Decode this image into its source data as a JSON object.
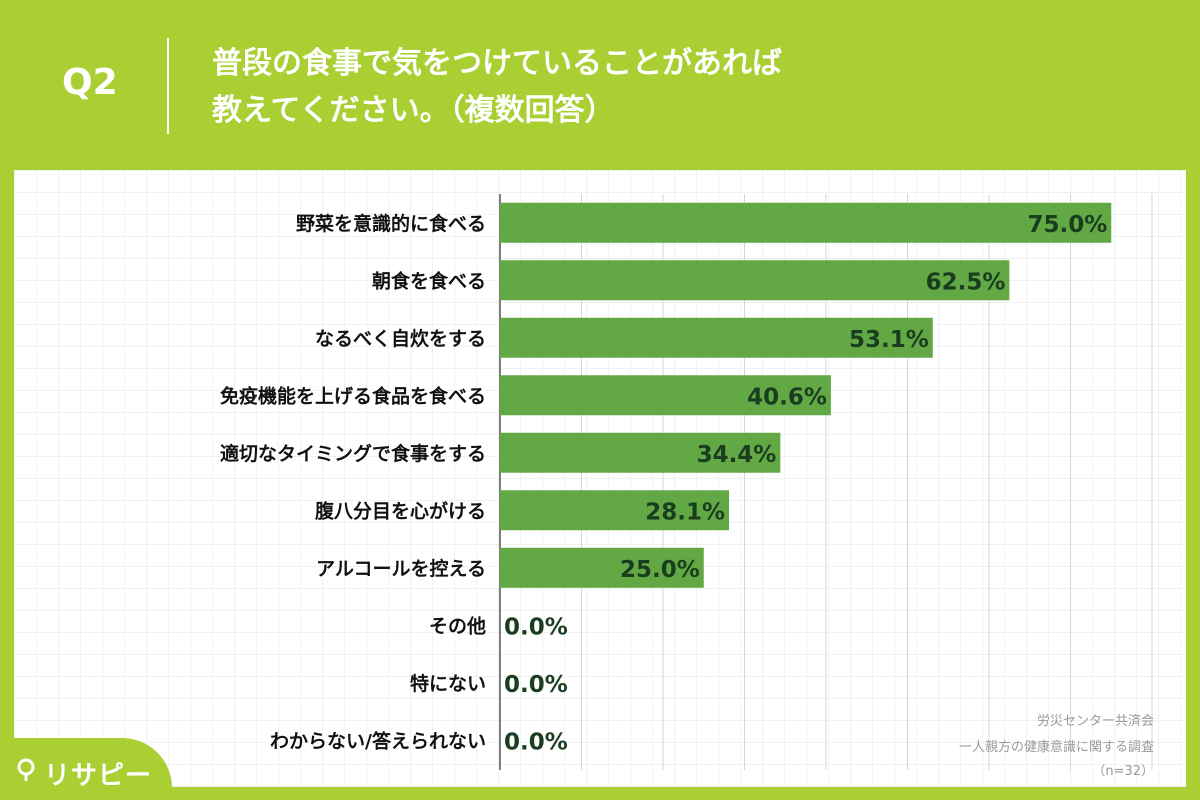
{
  "header": {
    "q_label": "Q2",
    "question": "普段の食事で気をつけていることがあれば\n教えてください。（複数回答）"
  },
  "source": {
    "line1": "労災センター共済会",
    "line2": "一人親方の健康意識に関する調査",
    "line3": "（n=32）"
  },
  "logo": {
    "text": "リサピー",
    "icon": "pin-icon"
  },
  "colors": {
    "bar": "#62a844",
    "background": "#a9cf33",
    "value_text": "#1a3d20"
  },
  "chart_data": {
    "type": "bar",
    "orientation": "horizontal",
    "categories": [
      "野菜を意識的に食べる",
      "朝食を食べる",
      "なるべく自炊をする",
      "免疫機能を上げる食品を食べる",
      "適切なタイミングで食事をする",
      "腹八分目を心がける",
      "アルコールを控える",
      "その他",
      "特にない",
      "わからない/答えられない"
    ],
    "values": [
      75.0,
      62.5,
      53.1,
      40.6,
      34.4,
      28.1,
      25.0,
      0.0,
      0.0,
      0.0
    ],
    "value_labels": [
      "75.0%",
      "62.5%",
      "53.1%",
      "40.6%",
      "34.4%",
      "28.1%",
      "25.0%",
      "0.0%",
      "0.0%",
      "0.0%"
    ],
    "xlim": [
      0,
      80
    ],
    "grid": true
  }
}
